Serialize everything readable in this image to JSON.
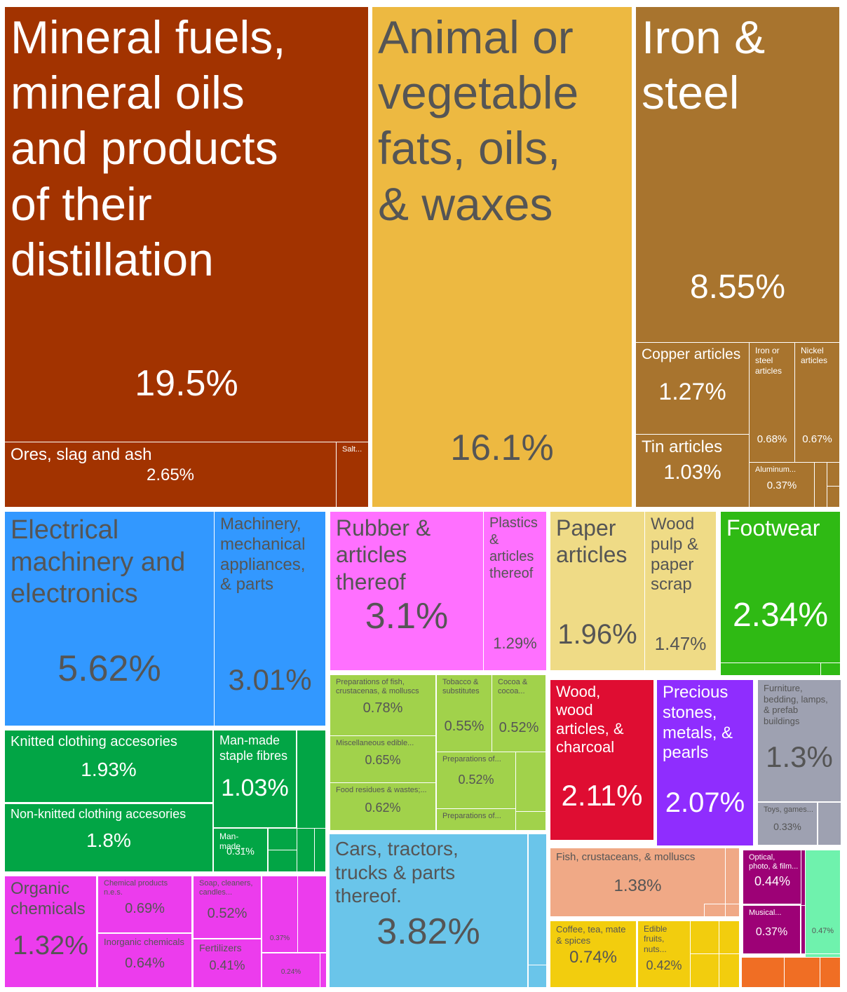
{
  "chart_data": {
    "type": "treemap",
    "unit": "%",
    "colors": {
      "mineral": "#a23300",
      "fats": "#edb941",
      "metals": "#a8742e",
      "electrical": "#3298ff",
      "rubber": "#ff70ff",
      "paper": "#efdb86",
      "footwear": "#2fba14",
      "textiles": "#02a545",
      "foodstuffs": "#a1d24b",
      "wood": "#df0d32",
      "stones": "#8f2dfe",
      "misc": "#9ea1b1",
      "chemicals": "#ec3ced",
      "transport": "#6ac5ea",
      "animal": "#f0a986",
      "vegetable": "#f2cd0e",
      "instruments": "#9d0176",
      "arts": "#6ff2ad",
      "minor": "#f06e24"
    },
    "tiles": [
      {
        "id": "mineral-fuels",
        "label": "Mineral fuels,\nmineral oils\nand products\nof their\ndistillation",
        "value": 19.5,
        "value_text": "19.5%",
        "group": "mineral"
      },
      {
        "id": "ores-slag-ash",
        "label": "Ores, slag and ash",
        "value": 2.65,
        "value_text": "2.65%",
        "group": "mineral"
      },
      {
        "id": "salt",
        "label": "Salt...",
        "value_text": "",
        "group": "mineral"
      },
      {
        "id": "fats-oils",
        "label": "Animal or\nvegetable\nfats, oils,\n& waxes",
        "value": 16.1,
        "value_text": "16.1%",
        "group": "fats"
      },
      {
        "id": "iron-steel",
        "label": "Iron &\nsteel",
        "value": 8.55,
        "value_text": "8.55%",
        "group": "metals"
      },
      {
        "id": "copper-articles",
        "label": "Copper articles",
        "value": 1.27,
        "value_text": "1.27%",
        "group": "metals"
      },
      {
        "id": "iron-steel-articles",
        "label": "Iron or\nsteel\narticles",
        "value": 0.68,
        "value_text": "0.68%",
        "group": "metals"
      },
      {
        "id": "nickel-articles",
        "label": "Nickel\narticles",
        "value": 0.67,
        "value_text": "0.67%",
        "group": "metals"
      },
      {
        "id": "tin-articles",
        "label": "Tin articles",
        "value": 1.03,
        "value_text": "1.03%",
        "group": "metals"
      },
      {
        "id": "aluminum",
        "label": "Aluminum...",
        "value": 0.37,
        "value_text": "0.37%",
        "group": "metals"
      },
      {
        "id": "electrical-machinery",
        "label": "Electrical\nmachinery and\nelectronics",
        "value": 5.62,
        "value_text": "5.62%",
        "group": "electrical"
      },
      {
        "id": "machinery",
        "label": "Machinery,\nmechanical\nappliances,\n& parts",
        "value": 3.01,
        "value_text": "3.01%",
        "group": "electrical"
      },
      {
        "id": "rubber",
        "label": "Rubber &\narticles\nthereof",
        "value": 3.1,
        "value_text": "3.1%",
        "group": "rubber"
      },
      {
        "id": "plastics",
        "label": "Plastics\n&\narticles\nthereof",
        "value": 1.29,
        "value_text": "1.29%",
        "group": "rubber"
      },
      {
        "id": "paper-articles",
        "label": "Paper\narticles",
        "value": 1.96,
        "value_text": "1.96%",
        "group": "paper"
      },
      {
        "id": "wood-pulp",
        "label": "Wood\npulp &\npaper\nscrap",
        "value": 1.47,
        "value_text": "1.47%",
        "group": "paper"
      },
      {
        "id": "footwear",
        "label": "Footwear",
        "value": 2.34,
        "value_text": "2.34%",
        "group": "footwear"
      },
      {
        "id": "knitted-clothing",
        "label": "Knitted clothing accesories",
        "value": 1.93,
        "value_text": "1.93%",
        "group": "textiles"
      },
      {
        "id": "non-knitted-clothing",
        "label": "Non-knitted clothing accesories",
        "value": 1.8,
        "value_text": "1.8%",
        "group": "textiles"
      },
      {
        "id": "man-made-staple",
        "label": "Man-made\nstaple fibres",
        "value": 1.03,
        "value_text": "1.03%",
        "group": "textiles"
      },
      {
        "id": "man-made-filaments",
        "label": "Man-made...",
        "value": 0.31,
        "value_text": "0.31%",
        "group": "textiles"
      },
      {
        "id": "prep-fish",
        "label": "Preparations of fish,\ncrustacenas, & molluscs",
        "value": 0.78,
        "value_text": "0.78%",
        "group": "foodstuffs"
      },
      {
        "id": "tobacco",
        "label": "Tobacco &\nsubstitutes",
        "value": 0.55,
        "value_text": "0.55%",
        "group": "foodstuffs"
      },
      {
        "id": "cocoa",
        "label": "Cocoa &\ncocoa...",
        "value": 0.52,
        "value_text": "0.52%",
        "group": "foodstuffs"
      },
      {
        "id": "misc-edible",
        "label": "Miscellaneous edible...",
        "value": 0.65,
        "value_text": "0.65%",
        "group": "foodstuffs"
      },
      {
        "id": "preparations-1",
        "label": "Preparations of...",
        "value": 0.52,
        "value_text": "0.52%",
        "group": "foodstuffs"
      },
      {
        "id": "food-residues",
        "label": "Food residues & wastes;...",
        "value": 0.62,
        "value_text": "0.62%",
        "group": "foodstuffs"
      },
      {
        "id": "preparations-2",
        "label": "Preparations of...",
        "value_text": "",
        "group": "foodstuffs"
      },
      {
        "id": "wood",
        "label": "Wood,\nwood\narticles, &\ncharcoal",
        "value": 2.11,
        "value_text": "2.11%",
        "group": "wood"
      },
      {
        "id": "precious-stones",
        "label": "Precious\nstones,\nmetals, &\npearls",
        "value": 2.07,
        "value_text": "2.07%",
        "group": "stones"
      },
      {
        "id": "furniture",
        "label": "Furniture,\nbedding, lamps,\n& prefab\nbuildings",
        "value": 1.3,
        "value_text": "1.3%",
        "group": "misc"
      },
      {
        "id": "toys",
        "label": "Toys, games...",
        "value": 0.33,
        "value_text": "0.33%",
        "group": "misc"
      },
      {
        "id": "organic-chemicals",
        "label": "Organic\nchemicals",
        "value": 1.32,
        "value_text": "1.32%",
        "group": "chemicals"
      },
      {
        "id": "chemical-products",
        "label": "Chemical products\nn.e.s.",
        "value": 0.69,
        "value_text": "0.69%",
        "group": "chemicals"
      },
      {
        "id": "inorganic-chemicals",
        "label": "Inorganic chemicals",
        "value": 0.64,
        "value_text": "0.64%",
        "group": "chemicals"
      },
      {
        "id": "soap",
        "label": "Soap, cleaners,\ncandles...",
        "value": 0.52,
        "value_text": "0.52%",
        "group": "chemicals"
      },
      {
        "id": "fertilizers",
        "label": "Fertilizers",
        "value": 0.41,
        "value_text": "0.41%",
        "group": "chemicals"
      },
      {
        "id": "chem-small-1",
        "label": "",
        "value": 0.37,
        "value_text": "0.37%",
        "group": "chemicals"
      },
      {
        "id": "chem-small-2",
        "label": "",
        "value": 0.24,
        "value_text": "0.24%",
        "group": "chemicals"
      },
      {
        "id": "cars",
        "label": "Cars, tractors,\ntrucks & parts\nthereof.",
        "value": 3.82,
        "value_text": "3.82%",
        "group": "transport"
      },
      {
        "id": "fish",
        "label": "Fish, crustaceans, & molluscs",
        "value": 1.38,
        "value_text": "1.38%",
        "group": "animal"
      },
      {
        "id": "coffee",
        "label": "Coffee, tea, mate\n& spices",
        "value": 0.74,
        "value_text": "0.74%",
        "group": "vegetable"
      },
      {
        "id": "edible-fruits",
        "label": "Edible\nfruits, nuts...",
        "value": 0.42,
        "value_text": "0.42%",
        "group": "vegetable"
      },
      {
        "id": "optical",
        "label": "Optical,\nphoto, & film...",
        "value": 0.44,
        "value_text": "0.44%",
        "group": "instruments"
      },
      {
        "id": "musical",
        "label": "Musical...",
        "value": 0.37,
        "value_text": "0.37%",
        "group": "instruments"
      },
      {
        "id": "arts",
        "label": "",
        "value": 0.47,
        "value_text": "0.47%",
        "group": "arts"
      }
    ]
  }
}
